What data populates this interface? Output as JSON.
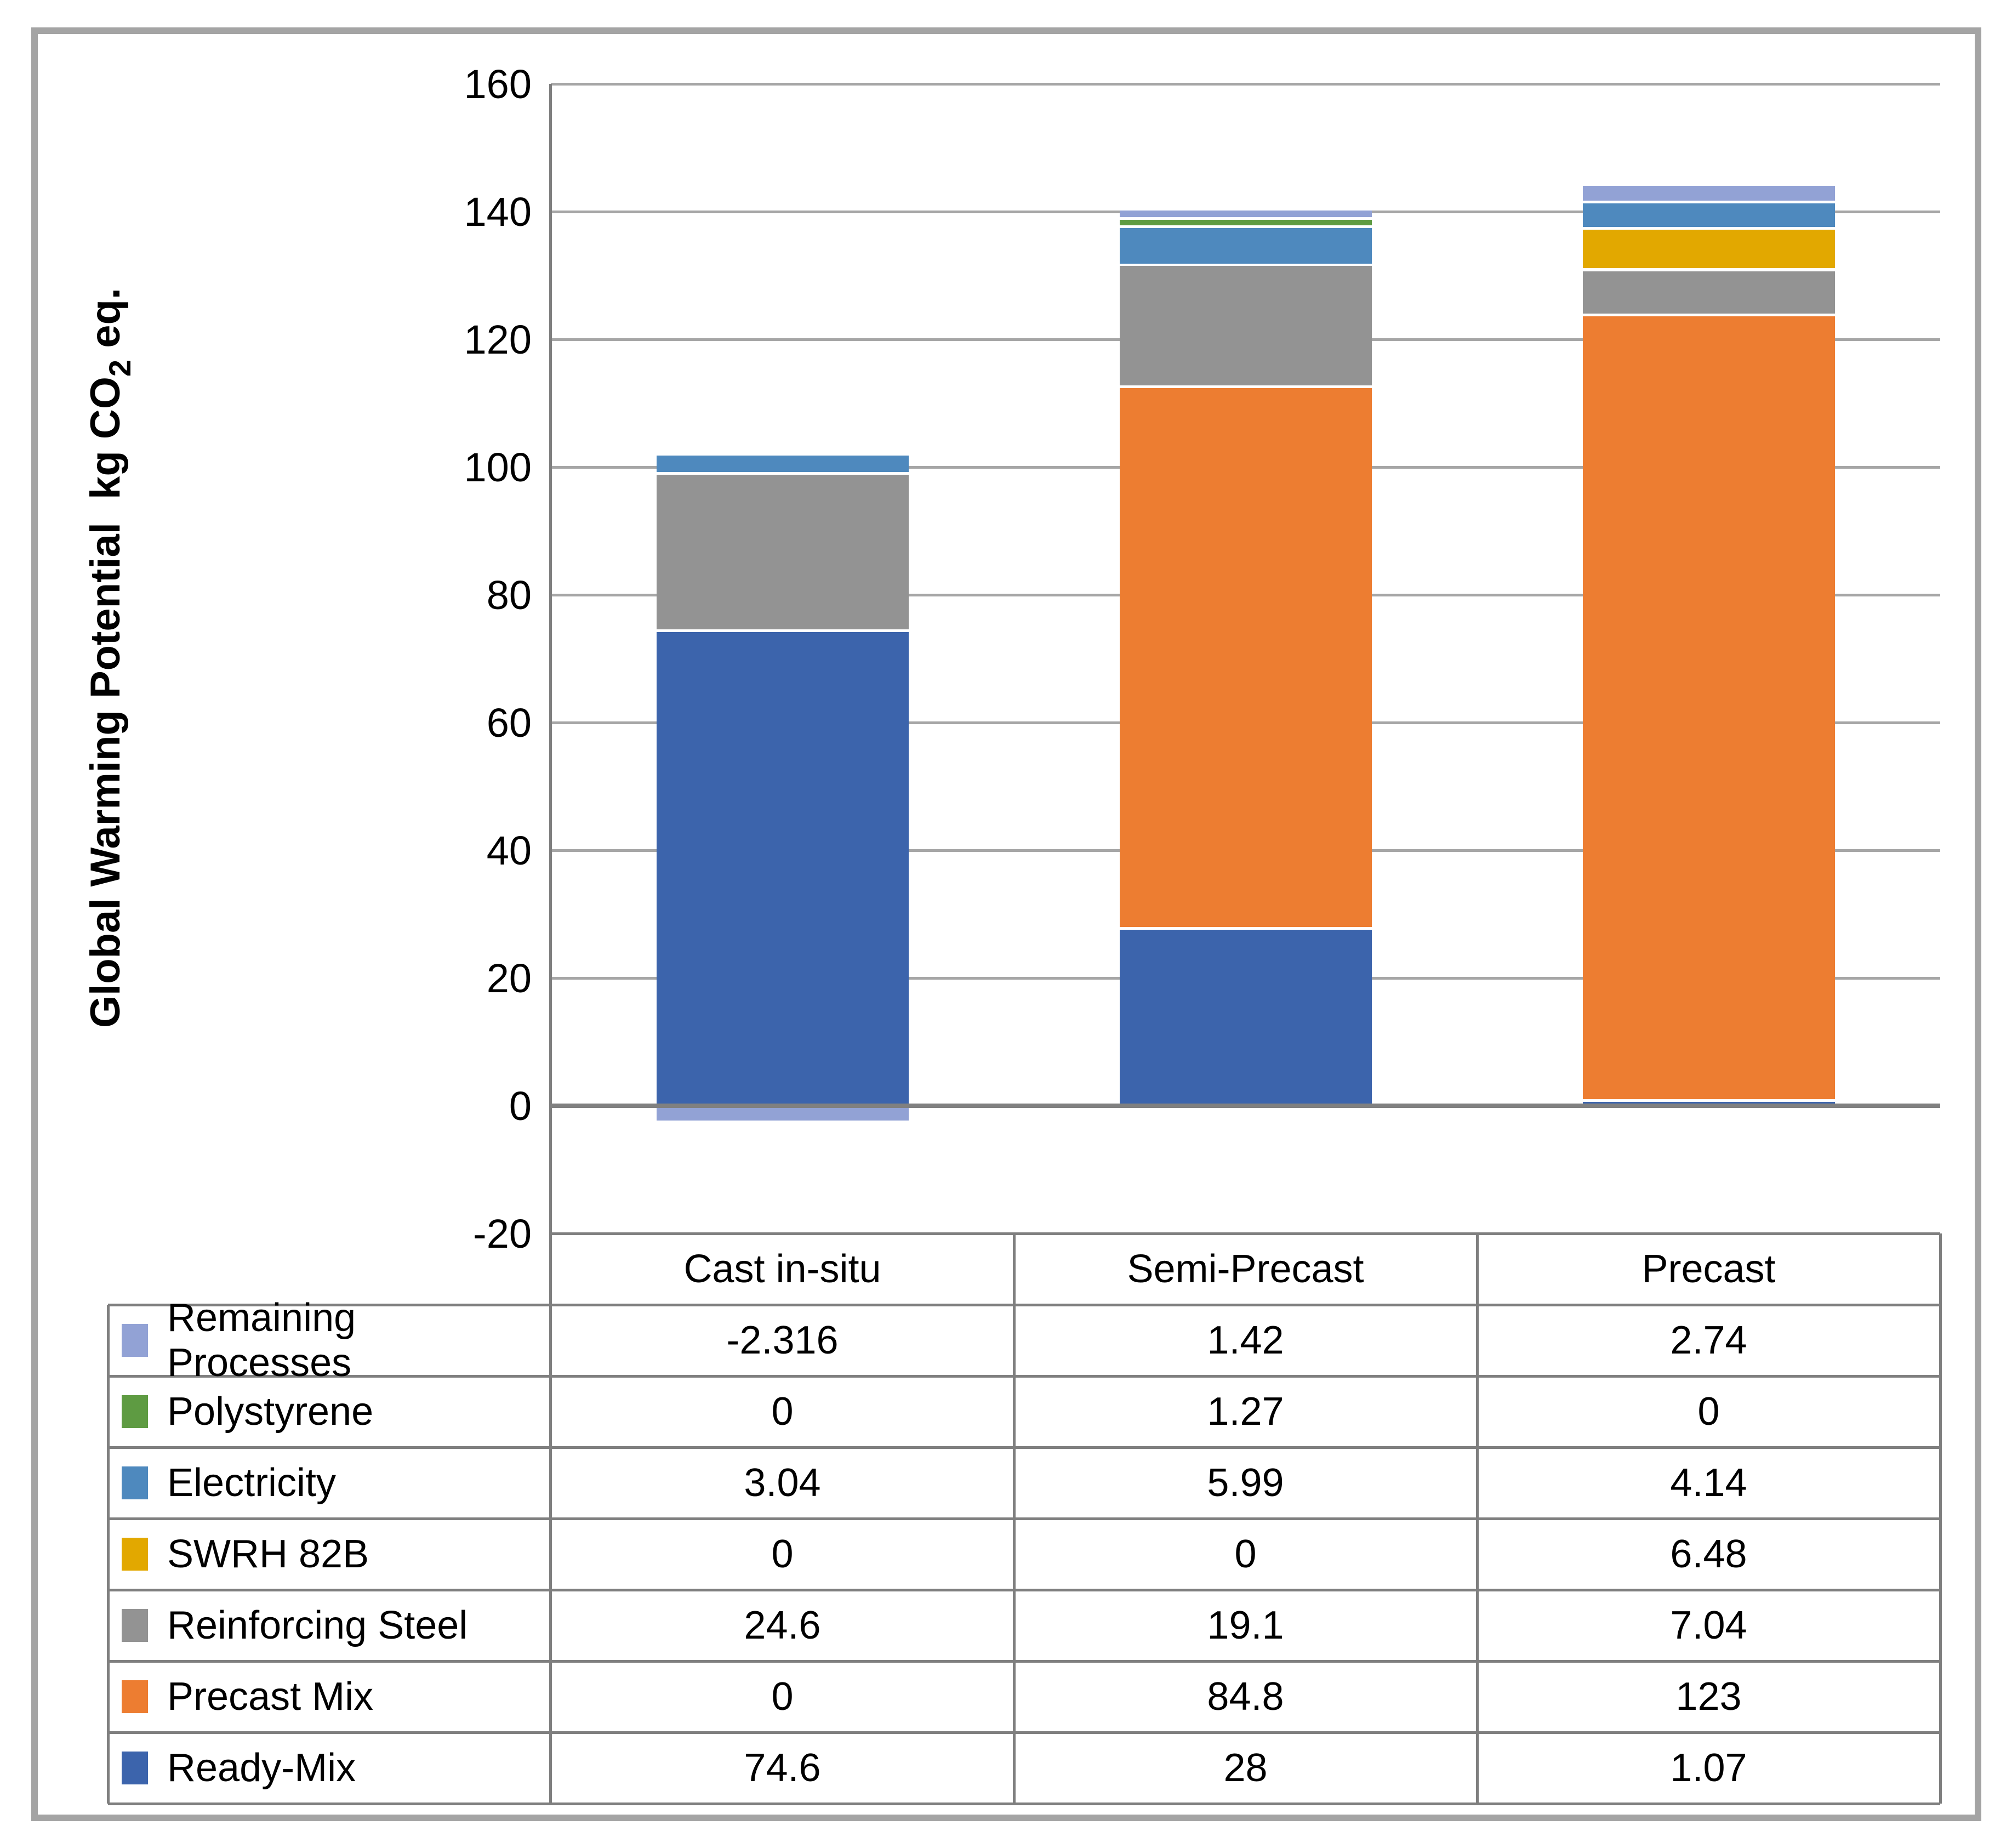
{
  "chart_data": {
    "type": "bar",
    "stacked": true,
    "title": "",
    "ylabel": "Global Warming Potential kg CO2 eq.",
    "ylabel_parts": {
      "pre": "Global Warming Potential  kg CO",
      "sub": "2",
      "post": " eq."
    },
    "ylim": [
      -20,
      160
    ],
    "yticks": [
      160,
      140,
      120,
      100,
      80,
      60,
      40,
      20,
      0,
      -20
    ],
    "grid": true,
    "legend_position": "table-left",
    "categories": [
      "Cast in-situ",
      "Semi-Precast",
      "Precast"
    ],
    "series": [
      {
        "name": "Ready-Mix",
        "color": "#3C64AC",
        "values": [
          74.6,
          28,
          1.07
        ]
      },
      {
        "name": "Precast Mix",
        "color": "#ED7D31",
        "values": [
          0,
          84.8,
          123
        ]
      },
      {
        "name": "Reinforcing Steel",
        "color": "#939393",
        "values": [
          24.6,
          19.1,
          7.04
        ]
      },
      {
        "name": "SWRH 82B",
        "color": "#E2A800",
        "values": [
          0,
          0,
          6.48
        ]
      },
      {
        "name": "Electricity",
        "color": "#4E89BE",
        "values": [
          3.04,
          5.99,
          4.14
        ]
      },
      {
        "name": "Polystyrene",
        "color": "#5E9B42",
        "values": [
          0,
          1.27,
          0
        ]
      },
      {
        "name": "Remaining Processes",
        "color": "#92A2D5",
        "values": [
          -2.316,
          1.42,
          2.74
        ]
      }
    ]
  },
  "data_table": {
    "categories": [
      "Cast in-situ",
      "Semi-Precast",
      "Precast"
    ],
    "rows": [
      {
        "label": "Remaining Processes",
        "color": "#92A2D5",
        "values": [
          "-2.316",
          "1.42",
          "2.74"
        ]
      },
      {
        "label": "Polystyrene",
        "color": "#5E9B42",
        "values": [
          "0",
          "1.27",
          "0"
        ]
      },
      {
        "label": "Electricity",
        "color": "#4E89BE",
        "values": [
          "3.04",
          "5.99",
          "4.14"
        ]
      },
      {
        "label": "SWRH 82B",
        "color": "#E2A800",
        "values": [
          "0",
          "0",
          "6.48"
        ]
      },
      {
        "label": "Reinforcing Steel",
        "color": "#939393",
        "values": [
          "24.6",
          "19.1",
          "7.04"
        ]
      },
      {
        "label": "Precast Mix",
        "color": "#ED7D31",
        "values": [
          "0",
          "84.8",
          "123"
        ]
      },
      {
        "label": "Ready-Mix",
        "color": "#3C64AC",
        "values": [
          "74.6",
          "28",
          "1.07"
        ]
      }
    ]
  }
}
